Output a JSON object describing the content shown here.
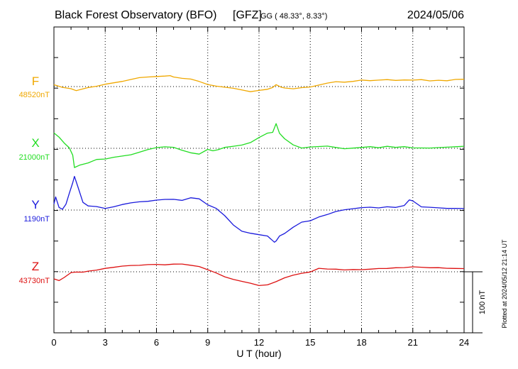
{
  "header": {
    "title": "Black Forest Observatory (BFO)",
    "agency": "[GFZ]",
    "coords": "GG ( 48.33°,   8.33°)",
    "date": "2024/05/06"
  },
  "side_note": "Plotted at 2024/05/12 21:14 UT",
  "scale_bar": {
    "label": "100 nT",
    "value_nT": 100
  },
  "chart_data": {
    "type": "line",
    "xlabel": "U T (hour)",
    "xlim": [
      0,
      24
    ],
    "xticks": [
      0,
      3,
      6,
      9,
      12,
      15,
      18,
      21,
      24
    ],
    "xtick_labels": [
      "0",
      "3",
      "6",
      "9",
      "12",
      "15",
      "18",
      "21",
      "24"
    ],
    "grid": true,
    "series": [
      {
        "name": "F",
        "baseline_label": "48520nT",
        "baseline_nT": 48520,
        "color": "#f0a800",
        "x": [
          0,
          0.5,
          1,
          1.3,
          1.7,
          2,
          2.5,
          3,
          3.5,
          4,
          4.5,
          5,
          5.5,
          6,
          6.5,
          6.8,
          7,
          7.5,
          8,
          8.5,
          9,
          9.5,
          10,
          10.5,
          11,
          11.5,
          12,
          12.5,
          12.8,
          13,
          13.3,
          13.5,
          14,
          14.5,
          15,
          15.5,
          16,
          16.5,
          17,
          17.5,
          18,
          18.5,
          19,
          19.5,
          20,
          20.5,
          21,
          21.5,
          22,
          22.5,
          23,
          23.5,
          24
        ],
        "y": [
          3,
          -1,
          -3,
          -6,
          -3,
          -1,
          1,
          4,
          6,
          8,
          11,
          14,
          15,
          16,
          17,
          18,
          16,
          14,
          13,
          9,
          4,
          1,
          -1,
          -3,
          -6,
          -9,
          -7,
          -5,
          -2,
          3,
          -1,
          -2,
          -3,
          -1,
          0,
          3,
          6,
          8,
          7,
          8,
          10,
          9,
          10,
          11,
          10,
          11,
          11,
          12,
          10,
          11,
          10,
          12,
          12
        ]
      },
      {
        "name": "X",
        "baseline_label": "21000nT",
        "baseline_nT": 21000,
        "color": "#22dd22",
        "x": [
          0,
          0.3,
          0.6,
          0.9,
          1.1,
          1.2,
          1.5,
          2,
          2.5,
          3,
          3.5,
          4,
          4.5,
          5,
          5.5,
          6,
          6.5,
          7,
          7.5,
          8,
          8.5,
          9,
          9.3,
          9.6,
          10,
          10.5,
          11,
          11.5,
          12,
          12.5,
          12.8,
          13,
          13.2,
          13.5,
          14,
          14.5,
          15,
          15.5,
          16,
          16.5,
          17,
          17.5,
          18,
          18.5,
          19,
          19.5,
          20,
          20.5,
          21,
          21.5,
          22,
          22.5,
          23,
          23.5,
          24
        ],
        "y": [
          25,
          18,
          8,
          0,
          -12,
          -32,
          -28,
          -24,
          -18,
          -17,
          -14,
          -12,
          -10,
          -6,
          -2,
          1,
          2,
          1,
          -4,
          -8,
          -10,
          -2,
          -4,
          -2,
          2,
          4,
          6,
          10,
          18,
          25,
          26,
          40,
          24,
          15,
          5,
          0,
          2,
          3,
          4,
          2,
          0,
          1,
          2,
          3,
          1,
          3,
          1,
          2,
          0,
          0,
          0,
          1,
          2,
          3,
          4
        ]
      },
      {
        "name": "Y",
        "baseline_label": "1190nT",
        "baseline_nT": 1190,
        "color": "#1a1adc",
        "x": [
          0,
          0.1,
          0.3,
          0.5,
          0.7,
          0.9,
          1.1,
          1.2,
          1.4,
          1.7,
          2,
          2.5,
          3,
          3.5,
          4,
          4.5,
          5,
          5.5,
          6,
          6.5,
          7,
          7.5,
          8,
          8.5,
          9,
          9.5,
          10,
          10.5,
          11,
          11.5,
          12,
          12.5,
          12.9,
          13,
          13.2,
          13.5,
          14,
          14.5,
          15,
          15.5,
          16,
          16.5,
          17,
          17.5,
          18,
          18.5,
          19,
          19.5,
          20,
          20.5,
          20.8,
          21,
          21.5,
          22,
          22.5,
          23,
          23.5,
          24
        ],
        "y": [
          10,
          22,
          5,
          2,
          10,
          28,
          45,
          55,
          38,
          12,
          6,
          5,
          2,
          5,
          9,
          12,
          14,
          15,
          17,
          18,
          18,
          16,
          20,
          18,
          8,
          2,
          -10,
          -25,
          -35,
          -38,
          -40,
          -42,
          -52,
          -50,
          -42,
          -38,
          -28,
          -20,
          -18,
          -12,
          -8,
          -3,
          0,
          2,
          4,
          5,
          4,
          6,
          5,
          8,
          17,
          15,
          5,
          4,
          3,
          2,
          2,
          2
        ]
      },
      {
        "name": "Z",
        "baseline_label": "43730nT",
        "baseline_nT": 43730,
        "color": "#dd1111",
        "x": [
          0,
          0.3,
          0.6,
          1,
          1.3,
          1.7,
          2,
          2.5,
          3,
          3.5,
          4,
          4.5,
          5,
          5.5,
          6,
          6.5,
          7,
          7.5,
          8,
          8.5,
          9,
          9.5,
          10,
          10.5,
          11,
          11.5,
          12,
          12.5,
          13,
          13.5,
          14,
          14.5,
          15,
          15.5,
          16,
          16.5,
          17,
          17.5,
          18,
          18.5,
          19,
          19.5,
          20,
          20.5,
          21,
          21.5,
          22,
          22.5,
          23,
          23.5,
          24
        ],
        "y": [
          -12,
          -15,
          -10,
          -2,
          -1,
          -1,
          1,
          3,
          6,
          8,
          10,
          11,
          11,
          12,
          12,
          11,
          12,
          12,
          10,
          8,
          3,
          -2,
          -8,
          -12,
          -15,
          -18,
          -22,
          -21,
          -16,
          -10,
          -6,
          -3,
          -1,
          5,
          4,
          4,
          3,
          4,
          4,
          5,
          6,
          6,
          7,
          7,
          8,
          7,
          6,
          6,
          5,
          5,
          5
        ]
      }
    ]
  }
}
